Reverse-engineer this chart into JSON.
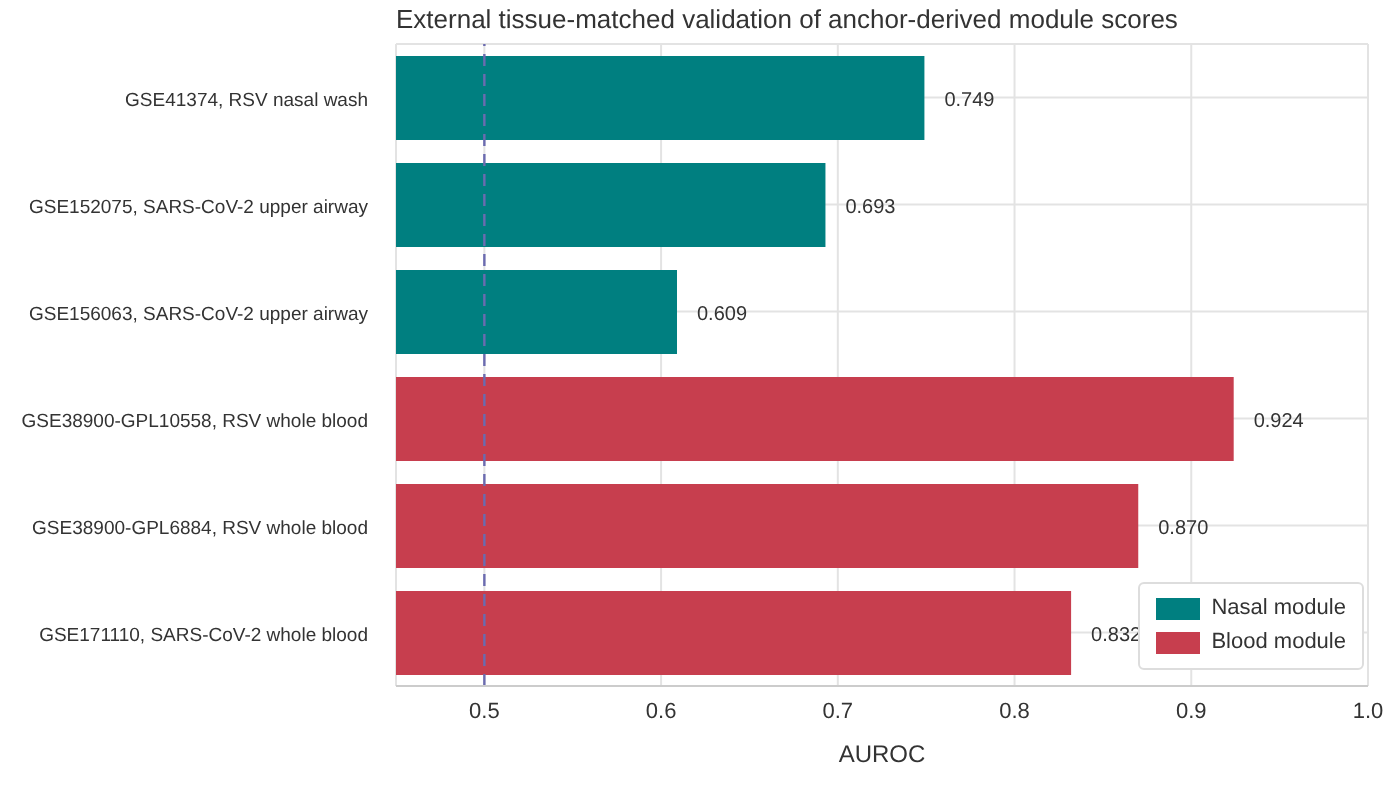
{
  "chart_data": {
    "type": "bar",
    "orientation": "horizontal",
    "stacked": true,
    "title": "External tissue-matched validation of anchor-derived module scores",
    "xlabel": "AUROC",
    "categories": [
      "GSE41374, RSV nasal wash",
      "GSE152075, SARS-CoV-2 upper airway",
      "GSE156063, SARS-CoV-2 upper airway",
      "GSE38900-GPL10558, RSV whole blood",
      "GSE38900-GPL6884, RSV whole blood",
      "GSE171110, SARS-CoV-2 whole blood"
    ],
    "series": [
      {
        "name": "Nasal module",
        "color": "#007f80",
        "values": [
          0.749,
          0.693,
          0.609,
          null,
          null,
          null
        ],
        "value_labels": [
          "0.749",
          "0.693",
          "0.609",
          null,
          null,
          null
        ]
      },
      {
        "name": "Blood module",
        "color": "#c73e4e",
        "values": [
          null,
          null,
          null,
          0.924,
          0.87,
          0.832
        ],
        "value_labels": [
          null,
          null,
          null,
          "0.924",
          "0.870",
          "0.832"
        ]
      }
    ],
    "xlim": [
      0.45,
      1.0
    ],
    "xticks": [
      0.5,
      0.6,
      0.7,
      0.8,
      0.9,
      {
        "value": 1,
        "label": "1.0"
      }
    ],
    "ref_lines": [
      {
        "axis": "x",
        "value": 0.5,
        "color": "#6b6bb0",
        "line_style": "dashed"
      }
    ],
    "grid": true,
    "legend": "bottom right"
  }
}
